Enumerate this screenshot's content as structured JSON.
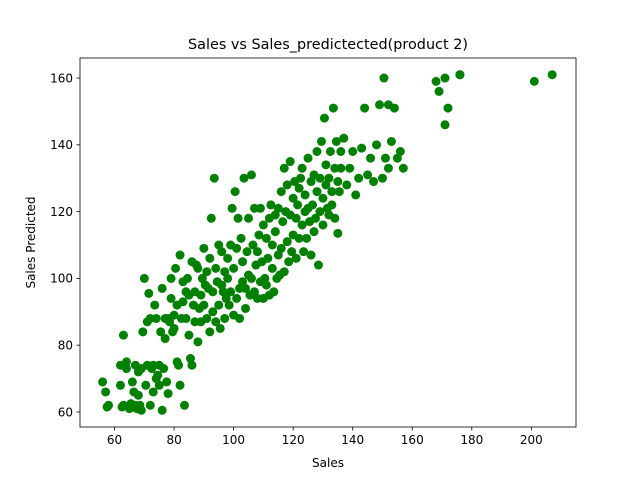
{
  "chart_data": {
    "type": "scatter",
    "title": "Sales vs Sales_predictected(product 2)",
    "xlabel": "Sales",
    "ylabel": "Sales Predicted",
    "xlim": [
      48.4,
      215.0
    ],
    "ylim": [
      55.5,
      166.0
    ],
    "xticks": [
      60,
      80,
      100,
      120,
      140,
      160,
      180,
      200
    ],
    "yticks": [
      60,
      80,
      100,
      120,
      140,
      160
    ],
    "marker_color": "#008000",
    "grid": false,
    "legend": "none",
    "series": [
      {
        "color": "#008000",
        "points": [
          [
            56,
            69
          ],
          [
            57,
            66
          ],
          [
            57.5,
            61.5
          ],
          [
            58,
            62
          ],
          [
            62,
            74
          ],
          [
            62,
            68
          ],
          [
            62.5,
            61.5
          ],
          [
            63,
            62
          ],
          [
            63,
            83
          ],
          [
            64,
            73
          ],
          [
            64,
            75
          ],
          [
            65,
            61
          ],
          [
            65.5,
            62.5
          ],
          [
            66,
            69
          ],
          [
            66.5,
            66
          ],
          [
            67,
            74
          ],
          [
            67,
            62
          ],
          [
            67.5,
            61
          ],
          [
            68,
            72
          ],
          [
            68,
            65
          ],
          [
            68.5,
            62
          ],
          [
            69,
            73
          ],
          [
            69,
            60.5
          ],
          [
            69.5,
            84
          ],
          [
            70,
            100
          ],
          [
            70.5,
            68
          ],
          [
            71,
            74
          ],
          [
            71,
            87
          ],
          [
            71.5,
            95.5
          ],
          [
            72,
            88
          ],
          [
            72,
            62
          ],
          [
            72.5,
            73
          ],
          [
            73,
            74
          ],
          [
            73,
            66
          ],
          [
            73.5,
            92
          ],
          [
            74,
            70
          ],
          [
            74,
            88
          ],
          [
            74.5,
            71
          ],
          [
            75,
            74
          ],
          [
            75,
            68
          ],
          [
            75.5,
            84
          ],
          [
            76,
            97
          ],
          [
            76,
            60.5
          ],
          [
            76.5,
            73
          ],
          [
            77,
            88
          ],
          [
            77,
            82
          ],
          [
            77.5,
            69
          ],
          [
            78,
            65.5
          ],
          [
            78,
            88
          ],
          [
            78.5,
            87
          ],
          [
            79,
            94
          ],
          [
            79,
            100
          ],
          [
            79.5,
            84
          ],
          [
            80,
            89
          ],
          [
            80,
            85
          ],
          [
            80.5,
            103
          ],
          [
            81,
            92
          ],
          [
            81,
            75
          ],
          [
            81.5,
            74
          ],
          [
            82,
            107
          ],
          [
            82,
            68
          ],
          [
            82.5,
            88
          ],
          [
            83,
            93
          ],
          [
            83,
            99
          ],
          [
            83.5,
            62
          ],
          [
            84,
            88
          ],
          [
            84,
            96
          ],
          [
            84.5,
            100
          ],
          [
            85,
            83
          ],
          [
            85,
            95
          ],
          [
            85.5,
            76
          ],
          [
            86,
            105
          ],
          [
            86,
            74
          ],
          [
            86.5,
            92
          ],
          [
            87,
            87
          ],
          [
            87,
            96
          ],
          [
            87.5,
            104
          ],
          [
            88,
            103
          ],
          [
            88,
            81
          ],
          [
            88.5,
            91
          ],
          [
            89,
            95
          ],
          [
            89,
            87
          ],
          [
            89.5,
            100
          ],
          [
            90,
            109
          ],
          [
            90,
            92
          ],
          [
            90.5,
            98
          ],
          [
            91,
            88
          ],
          [
            91,
            102
          ],
          [
            91.5,
            97
          ],
          [
            92,
            84
          ],
          [
            92,
            106
          ],
          [
            92.5,
            118
          ],
          [
            93,
            90
          ],
          [
            93,
            96
          ],
          [
            93.5,
            130
          ],
          [
            94,
            87
          ],
          [
            94,
            103
          ],
          [
            94.5,
            99
          ],
          [
            95,
            92
          ],
          [
            95,
            110
          ],
          [
            95.5,
            85
          ],
          [
            96,
            98
          ],
          [
            96,
            108
          ],
          [
            96.5,
            96
          ],
          [
            97,
            102
          ],
          [
            97,
            88
          ],
          [
            97.5,
            94
          ],
          [
            98,
            100
          ],
          [
            98,
            106
          ],
          [
            98.5,
            92
          ],
          [
            99,
            96
          ],
          [
            99,
            110
          ],
          [
            99.5,
            121
          ],
          [
            100,
            89
          ],
          [
            100,
            103
          ],
          [
            100.5,
            126
          ],
          [
            101,
            94
          ],
          [
            101,
            109
          ],
          [
            101.5,
            118
          ],
          [
            102,
            97
          ],
          [
            102,
            88
          ],
          [
            102.5,
            112
          ],
          [
            103,
            99
          ],
          [
            103,
            105
          ],
          [
            103.5,
            130
          ],
          [
            104,
            91
          ],
          [
            104,
            97
          ],
          [
            104.5,
            108
          ],
          [
            105,
            101
          ],
          [
            105,
            118
          ],
          [
            105.5,
            95
          ],
          [
            106,
            131
          ],
          [
            106,
            100
          ],
          [
            106.5,
            110
          ],
          [
            107,
            96
          ],
          [
            107,
            121
          ],
          [
            107.5,
            104
          ],
          [
            108,
            94
          ],
          [
            108,
            108
          ],
          [
            108.5,
            113
          ],
          [
            109,
            99
          ],
          [
            109,
            121
          ],
          [
            109.5,
            105
          ],
          [
            110,
            116
          ],
          [
            110,
            94
          ],
          [
            110.5,
            100
          ],
          [
            111,
            112
          ],
          [
            111,
            98
          ],
          [
            111.5,
            106
          ],
          [
            112,
            118
          ],
          [
            112,
            95
          ],
          [
            112.5,
            122
          ],
          [
            113,
            103
          ],
          [
            113,
            110
          ],
          [
            113.5,
            96
          ],
          [
            114,
            114
          ],
          [
            114,
            119
          ],
          [
            114.5,
            100
          ],
          [
            115,
            107
          ],
          [
            115,
            121
          ],
          [
            115.5,
            101
          ],
          [
            116,
            126
          ],
          [
            116,
            109
          ],
          [
            116.5,
            117
          ],
          [
            117,
            133
          ],
          [
            117,
            102
          ],
          [
            117.5,
            120
          ],
          [
            118,
            111
          ],
          [
            118,
            128
          ],
          [
            118.5,
            105
          ],
          [
            119,
            119
          ],
          [
            119,
            135
          ],
          [
            119.5,
            108
          ],
          [
            120,
            124
          ],
          [
            120,
            113
          ],
          [
            120.5,
            129
          ],
          [
            121,
            106
          ],
          [
            121,
            118
          ],
          [
            121.5,
            122
          ],
          [
            122,
            127
          ],
          [
            122,
            112
          ],
          [
            122.5,
            130
          ],
          [
            123,
            116
          ],
          [
            123,
            133
          ],
          [
            123.5,
            108
          ],
          [
            124,
            120
          ],
          [
            124,
            125
          ],
          [
            124.5,
            112
          ],
          [
            125,
            136
          ],
          [
            125,
            121
          ],
          [
            125.5,
            117
          ],
          [
            126,
            129
          ],
          [
            126,
            107
          ],
          [
            126.5,
            122
          ],
          [
            127,
            131
          ],
          [
            127,
            114
          ],
          [
            127.5,
            118
          ],
          [
            128,
            126
          ],
          [
            128,
            138
          ],
          [
            128.5,
            104
          ],
          [
            129,
            120
          ],
          [
            129,
            130
          ],
          [
            129.5,
            141
          ],
          [
            130,
            116
          ],
          [
            130,
            124
          ],
          [
            130.5,
            148
          ],
          [
            131,
            128
          ],
          [
            131,
            134
          ],
          [
            131.5,
            121
          ],
          [
            132,
            119
          ],
          [
            132,
            130
          ],
          [
            132.5,
            138
          ],
          [
            133,
            126
          ],
          [
            133,
            122
          ],
          [
            133.5,
            151
          ],
          [
            134,
            133
          ],
          [
            134,
            118
          ],
          [
            134.5,
            141
          ],
          [
            135,
            113.5
          ],
          [
            135,
            129
          ],
          [
            135.5,
            126
          ],
          [
            136,
            133
          ],
          [
            136,
            138
          ],
          [
            137,
            142
          ],
          [
            138,
            128
          ],
          [
            139,
            133
          ],
          [
            140,
            138
          ],
          [
            141,
            125
          ],
          [
            142,
            130
          ],
          [
            143,
            139
          ],
          [
            144,
            151
          ],
          [
            145,
            131
          ],
          [
            146,
            136
          ],
          [
            147,
            129
          ],
          [
            148,
            140
          ],
          [
            149,
            152
          ],
          [
            150,
            130
          ],
          [
            150.5,
            160
          ],
          [
            151,
            136
          ],
          [
            152,
            133
          ],
          [
            152,
            152
          ],
          [
            153,
            141
          ],
          [
            154,
            151
          ],
          [
            155,
            136
          ],
          [
            156,
            138
          ],
          [
            157,
            133
          ],
          [
            168,
            159
          ],
          [
            169,
            156
          ],
          [
            171,
            146
          ],
          [
            171,
            160
          ],
          [
            172,
            151
          ],
          [
            176,
            161
          ],
          [
            176,
            161
          ],
          [
            201,
            159
          ],
          [
            207,
            161
          ]
        ]
      }
    ]
  }
}
